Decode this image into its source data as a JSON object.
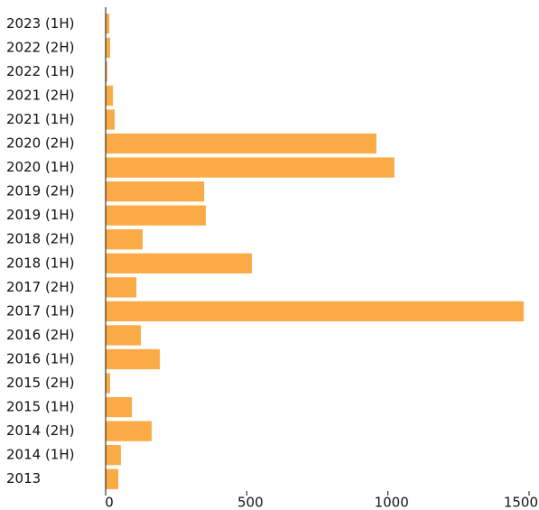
{
  "chart_data": {
    "type": "barh",
    "categories": [
      "2023 (1H)",
      "2022 (2H)",
      "2022 (1H)",
      "2021 (2H)",
      "2021 (1H)",
      "2020 (2H)",
      "2020 (1H)",
      "2019 (2H)",
      "2019 (1H)",
      "2018 (2H)",
      "2018 (1H)",
      "2017 (2H)",
      "2017 (1H)",
      "2016 (2H)",
      "2016 (1H)",
      "2015 (2H)",
      "2015 (1H)",
      "2014 (2H)",
      "2014 (1H)",
      "2013"
    ],
    "values": [
      13,
      16,
      6,
      26,
      32,
      959,
      1023,
      349,
      355,
      131,
      518,
      109,
      1481,
      125,
      192,
      16,
      93,
      163,
      54,
      45
    ],
    "color": "#fbab45",
    "xlim": [
      0,
      1500
    ],
    "xticks": [
      0,
      500,
      1000,
      1500
    ],
    "grid": false
  }
}
